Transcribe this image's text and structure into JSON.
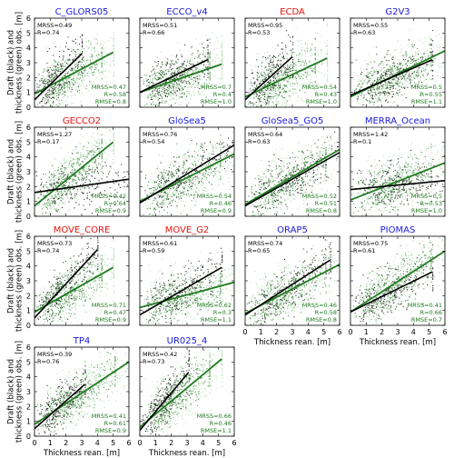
{
  "figure": {
    "ylabel": "Draft (black) and thickness (green) obs. [m]",
    "xlabel": "Thickness rean. [m]",
    "ticks": [
      "0",
      "1",
      "2",
      "3",
      "4",
      "5",
      "6"
    ]
  },
  "chart_data": [
    {
      "type": "scatter",
      "title": "C_GLORS05",
      "title_color": "#1a1adf",
      "xlim": [
        0,
        6
      ],
      "ylim": [
        0,
        6
      ],
      "black": {
        "MRSS": "0.49",
        "R": "0.74",
        "line": [
          [
            0,
            0.5
          ],
          [
            3.0,
            3.6
          ]
        ]
      },
      "green": {
        "MRSS": "0.47",
        "R": "0.58",
        "RMSE": "0.8",
        "line": [
          [
            0,
            0.9
          ],
          [
            5.0,
            3.7
          ]
        ]
      }
    },
    {
      "type": "scatter",
      "title": "ECCO_v4",
      "title_color": "#1a1adf",
      "xlim": [
        0,
        6
      ],
      "ylim": [
        0,
        6
      ],
      "black": {
        "MRSS": "0.51",
        "R": "0.66",
        "line": [
          [
            0,
            1.0
          ],
          [
            4.3,
            3.2
          ]
        ]
      },
      "green": {
        "MRSS": "0.7",
        "R": "0.4",
        "RMSE": "1.0",
        "line": [
          [
            0,
            1.0
          ],
          [
            5.2,
            2.9
          ]
        ]
      }
    },
    {
      "type": "scatter",
      "title": "ECDA",
      "title_color": "#e8120c",
      "xlim": [
        0,
        6
      ],
      "ylim": [
        0,
        6
      ],
      "black": {
        "MRSS": "0.95",
        "R": "0.53",
        "line": [
          [
            0,
            0.5
          ],
          [
            3.0,
            3.4
          ]
        ]
      },
      "green": {
        "MRSS": "0.54",
        "R": "0.43",
        "RMSE": "1.0",
        "line": [
          [
            0,
            0.7
          ],
          [
            5.2,
            3.3
          ]
        ]
      }
    },
    {
      "type": "scatter",
      "title": "G2V3",
      "title_color": "#1a1adf",
      "xlim": [
        0,
        6
      ],
      "ylim": [
        0,
        6
      ],
      "black": {
        "MRSS": "0.55",
        "R": "0.63",
        "line": [
          [
            0,
            0.8
          ],
          [
            5.2,
            3.2
          ]
        ]
      },
      "green": {
        "MRSS": "0.5",
        "R": "0.55",
        "RMSE": "1.1",
        "line": [
          [
            0,
            0.7
          ],
          [
            6.0,
            3.8
          ]
        ]
      }
    },
    {
      "type": "scatter",
      "title": "GECCO2",
      "title_color": "#e8120c",
      "xlim": [
        0,
        6
      ],
      "ylim": [
        0,
        6
      ],
      "black": {
        "MRSS": "1.27",
        "R": "0.17",
        "line": [
          [
            0,
            1.6
          ],
          [
            6.0,
            2.5
          ]
        ]
      },
      "green": {
        "MRSS": "0.42",
        "R": "0.64",
        "RMSE": "0.9",
        "line": [
          [
            0,
            0.7
          ],
          [
            5.0,
            5.0
          ]
        ]
      }
    },
    {
      "type": "scatter",
      "title": "GloSea5",
      "title_color": "#1a1adf",
      "xlim": [
        0,
        6
      ],
      "ylim": [
        0,
        6
      ],
      "black": {
        "MRSS": "0.76",
        "R": "0.54",
        "line": [
          [
            0,
            0.9
          ],
          [
            6.0,
            4.8
          ]
        ]
      },
      "green": {
        "MRSS": "0.54",
        "R": "0.46",
        "RMSE": "0.9",
        "line": [
          [
            0,
            1.0
          ],
          [
            6.0,
            4.2
          ]
        ]
      }
    },
    {
      "type": "scatter",
      "title": "GloSea5_GO5",
      "title_color": "#1a1adf",
      "xlim": [
        0,
        6
      ],
      "ylim": [
        0,
        6
      ],
      "black": {
        "MRSS": "0.64",
        "R": "0.63",
        "line": [
          [
            0,
            0.7
          ],
          [
            6.0,
            4.3
          ]
        ]
      },
      "green": {
        "MRSS": "0.52",
        "R": "0.51",
        "RMSE": "0.8",
        "line": [
          [
            0,
            0.8
          ],
          [
            6.0,
            4.5
          ]
        ]
      }
    },
    {
      "type": "scatter",
      "title": "MERRA_Ocean",
      "title_color": "#1a1adf",
      "xlim": [
        0,
        6
      ],
      "ylim": [
        0,
        6
      ],
      "black": {
        "MRSS": "1.42",
        "R": "0.1",
        "line": [
          [
            0,
            1.8
          ],
          [
            6.0,
            2.4
          ]
        ]
      },
      "green": {
        "MRSS": "0.5",
        "R": "0.53",
        "RMSE": "1.0",
        "line": [
          [
            0,
            1.1
          ],
          [
            6.0,
            3.6
          ]
        ]
      }
    },
    {
      "type": "scatter",
      "title": "MOVE_CORE",
      "title_color": "#e8120c",
      "xlim": [
        0,
        6
      ],
      "ylim": [
        0,
        6
      ],
      "black": {
        "MRSS": "0.73",
        "R": "0.74",
        "line": [
          [
            0,
            0.5
          ],
          [
            4.0,
            5.1
          ]
        ]
      },
      "green": {
        "MRSS": "0.71",
        "R": "0.47",
        "RMSE": "0.9",
        "line": [
          [
            0,
            0.9
          ],
          [
            5.0,
            3.9
          ]
        ]
      }
    },
    {
      "type": "scatter",
      "title": "MOVE_G2",
      "title_color": "#e8120c",
      "xlim": [
        0,
        6
      ],
      "ylim": [
        0,
        6
      ],
      "black": {
        "MRSS": "0.61",
        "R": "0.59",
        "line": [
          [
            0,
            0.7
          ],
          [
            5.2,
            3.9
          ]
        ]
      },
      "green": {
        "MRSS": "0.62",
        "R": "0.3",
        "RMSE": "1.1",
        "line": [
          [
            0,
            1.2
          ],
          [
            6.0,
            2.9
          ]
        ]
      }
    },
    {
      "type": "scatter",
      "title": "ORAP5",
      "title_color": "#1a1adf",
      "xlim": [
        0,
        6
      ],
      "ylim": [
        0,
        6
      ],
      "black": {
        "MRSS": "0.74",
        "R": "0.65",
        "line": [
          [
            0,
            0.7
          ],
          [
            5.4,
            4.4
          ]
        ]
      },
      "green": {
        "MRSS": "0.46",
        "R": "0.58",
        "RMSE": "0.8",
        "line": [
          [
            0,
            0.8
          ],
          [
            6.0,
            4.1
          ]
        ]
      }
    },
    {
      "type": "scatter",
      "title": "PIOMAS",
      "title_color": "#1a1adf",
      "xlim": [
        0,
        6
      ],
      "ylim": [
        0,
        6
      ],
      "black": {
        "MRSS": "0.75",
        "R": "0.61",
        "line": [
          [
            0,
            0.9
          ],
          [
            5.2,
            3.6
          ]
        ]
      },
      "green": {
        "MRSS": "0.41",
        "R": "0.66",
        "RMSE": "0.7",
        "line": [
          [
            0,
            0.9
          ],
          [
            6.0,
            5.0
          ]
        ]
      }
    },
    {
      "type": "scatter",
      "title": "TP4",
      "title_color": "#1a1adf",
      "xlim": [
        0,
        6
      ],
      "ylim": [
        0,
        6
      ],
      "black": {
        "MRSS": "0.39",
        "R": "0.76",
        "line": [
          [
            0,
            0.5
          ],
          [
            3.2,
            3.5
          ]
        ]
      },
      "green": {
        "MRSS": "0.41",
        "R": "0.61",
        "RMSE": "0.9",
        "line": [
          [
            0,
            0.8
          ],
          [
            6.0,
            5.0
          ]
        ]
      }
    },
    {
      "type": "scatter",
      "title": "UR025_4",
      "title_color": "#1a1adf",
      "xlim": [
        0,
        6
      ],
      "ylim": [
        0,
        6
      ],
      "black": {
        "MRSS": "0.42",
        "R": "0.73",
        "line": [
          [
            0,
            0.4
          ],
          [
            3.1,
            4.3
          ]
        ]
      },
      "green": {
        "MRSS": "0.66",
        "R": "0.46",
        "RMSE": "1.1",
        "line": [
          [
            0,
            0.6
          ],
          [
            5.2,
            5.2
          ]
        ]
      }
    }
  ]
}
